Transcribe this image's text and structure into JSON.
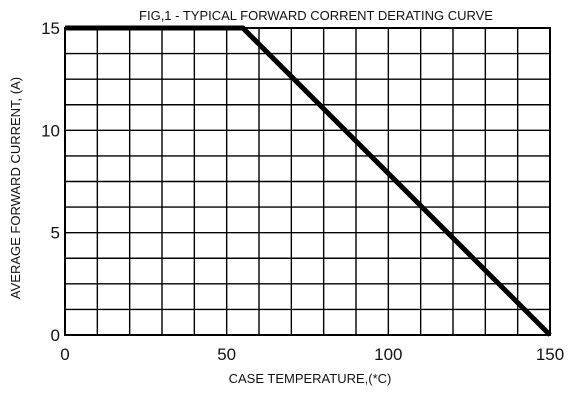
{
  "chart_data": {
    "type": "line",
    "title": "FIG,1 - TYPICAL FORWARD CORRENT DERATING CURVE",
    "xlabel": "CASE TEMPERATURE,(*C)",
    "ylabel": "AVERAGE FORWARD CURRENT, (A)",
    "xlim": [
      0,
      150
    ],
    "ylim": [
      0,
      15
    ],
    "x_ticks": [
      0,
      50,
      100,
      150
    ],
    "x_tick_labels": [
      "0",
      "50",
      "100",
      "150"
    ],
    "y_ticks": [
      0,
      5,
      10,
      15
    ],
    "y_tick_labels": [
      "0",
      "5",
      "10",
      "15"
    ],
    "x_grid_step": 10,
    "y_grid_step": 1.25,
    "grid": true,
    "series": [
      {
        "x": [
          0,
          55,
          150
        ],
        "y": [
          15,
          15,
          0
        ],
        "color": "#000000"
      }
    ]
  }
}
